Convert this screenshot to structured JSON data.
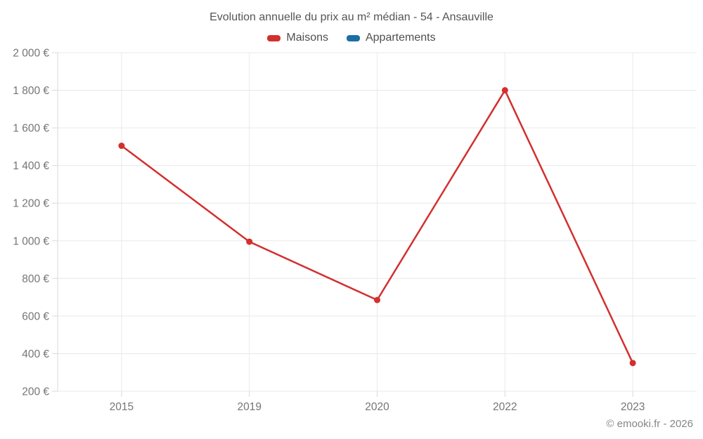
{
  "chart_data": {
    "type": "line",
    "title": "Evolution annuelle du prix au m² médian - 54 - Ansauville",
    "categories": [
      "2015",
      "2019",
      "2020",
      "2022",
      "2023"
    ],
    "series": [
      {
        "name": "Maisons",
        "color": "#d32f2f",
        "values": [
          1505,
          995,
          685,
          1800,
          350
        ]
      },
      {
        "name": "Appartements",
        "color": "#1c6ea4",
        "values": []
      }
    ],
    "ylim": [
      200,
      2000
    ],
    "y_ticks": [
      {
        "value": 200,
        "label": "200 €"
      },
      {
        "value": 400,
        "label": "400 €"
      },
      {
        "value": 600,
        "label": "600 €"
      },
      {
        "value": 800,
        "label": "800 €"
      },
      {
        "value": 1000,
        "label": "1 000 €"
      },
      {
        "value": 1200,
        "label": "1 200 €"
      },
      {
        "value": 1400,
        "label": "1 400 €"
      },
      {
        "value": 1600,
        "label": "1 600 €"
      },
      {
        "value": 1800,
        "label": "1 800 €"
      },
      {
        "value": 2000,
        "label": "2 000 €"
      }
    ],
    "grid": true,
    "legend_position": "top"
  },
  "colors": {
    "grid": "#e9e9e9",
    "axis": "#d9d9d9",
    "tick_text": "#757575",
    "title_text": "#555555",
    "footer_text": "#868686"
  },
  "footer": {
    "text": "© emooki.fr - 2026"
  }
}
